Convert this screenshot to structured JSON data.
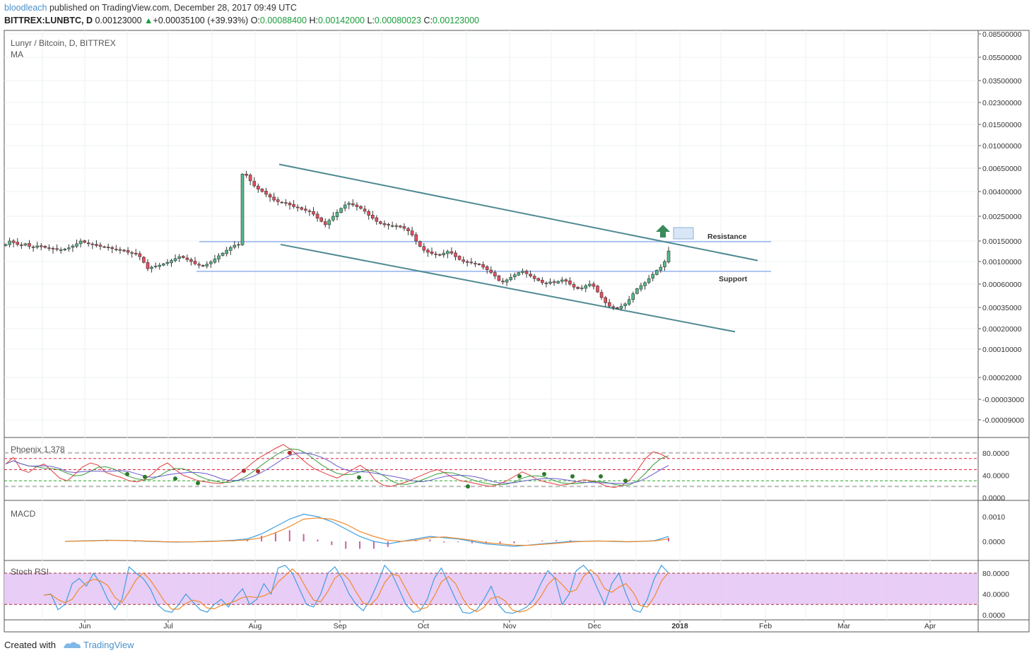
{
  "header": {
    "author": "bloodleach",
    "published_text": "published on TradingView.com, December 28, 2017 09:49 UTC",
    "symbol": "BITTREX:LUNBTC, D",
    "last": "0.00123000",
    "change_arrow": "▲",
    "change": "+0.00035100 (+39.93%)",
    "o_label": "O:",
    "o_value": "0.00088400",
    "h_label": "H:",
    "h_value": "0.00142000",
    "l_label": "L:",
    "l_value": "0.00080023",
    "c_label": "C:",
    "c_value": "0.00123000"
  },
  "footer": {
    "created_with": "Created with",
    "brand": "TradingView"
  },
  "colors": {
    "up_candle": "#53b987",
    "down_candle": "#eb4d5c",
    "channel": "#4e8a92",
    "level": "#9bb8f0",
    "arrow": "#3a8a5a",
    "macd": "#3e9ee0",
    "signal": "#f08a2c",
    "stoch_fill": "#e6c8f5",
    "grid": "#eef0f3"
  },
  "chart_data": [
    {
      "type": "candlestick",
      "title": "Lunyr / Bitcoin, D, BITTREX",
      "indicator": "MA",
      "scale": "log",
      "y_ticks": [
        "0.08500000",
        "0.05500000",
        "0.03500000",
        "0.02300000",
        "0.01500000",
        "0.01000000",
        "0.00650000",
        "0.00400000",
        "0.00250000",
        "0.00150000",
        "0.00100000",
        "0.00060000",
        "0.00035000",
        "0.00020000",
        "0.00010000",
        "0.00002000",
        "-0.00003000",
        "-0.00009000"
      ],
      "x_ticks": [
        "Jun",
        "Jul",
        "Aug",
        "Sep",
        "Oct",
        "Nov",
        "Dec",
        "2018",
        "Feb",
        "Mar",
        "Apr"
      ],
      "annotations": {
        "resistance": "Resistance",
        "support": "Support",
        "resistance_level": 0.00148,
        "support_level": 0.0008
      },
      "daily_close": [
        0.0014,
        0.0015,
        0.00145,
        0.0014,
        0.00138,
        0.00142,
        0.00135,
        0.00133,
        0.00136,
        0.00134,
        0.00132,
        0.0013,
        0.00128,
        0.00127,
        0.00126,
        0.00128,
        0.00131,
        0.00136,
        0.00142,
        0.0015,
        0.00146,
        0.00142,
        0.0014,
        0.00137,
        0.00135,
        0.00133,
        0.00131,
        0.00129,
        0.00127,
        0.00125,
        0.00123,
        0.0012,
        0.00118,
        0.00116,
        0.0011,
        0.00098,
        0.00085,
        0.00088,
        0.0009,
        0.00092,
        0.00095,
        0.00098,
        0.00102,
        0.00106,
        0.0011,
        0.00108,
        0.00104,
        0.001,
        0.00095,
        0.00092,
        0.0009,
        0.00094,
        0.00099,
        0.00105,
        0.00112,
        0.00118,
        0.00125,
        0.00132,
        0.00138,
        0.0014,
        0.00575,
        0.0056,
        0.005,
        0.0045,
        0.0042,
        0.004,
        0.0038,
        0.0036,
        0.0034,
        0.0033,
        0.00325,
        0.0032,
        0.0031,
        0.003,
        0.00295,
        0.00285,
        0.0028,
        0.00275,
        0.0026,
        0.0024,
        0.00225,
        0.0021,
        0.0023,
        0.0025,
        0.0027,
        0.0029,
        0.0031,
        0.0032,
        0.0031,
        0.003,
        0.0029,
        0.00275,
        0.00255,
        0.0024,
        0.00225,
        0.00215,
        0.0021,
        0.00208,
        0.00206,
        0.00204,
        0.002,
        0.00195,
        0.00185,
        0.0017,
        0.0015,
        0.00135,
        0.00125,
        0.0012,
        0.00117,
        0.00115,
        0.00113,
        0.00118,
        0.00122,
        0.00118,
        0.0011,
        0.00104,
        0.001,
        0.00098,
        0.00097,
        0.00095,
        0.00093,
        0.00088,
        0.00083,
        0.00078,
        0.00072,
        0.00065,
        0.00063,
        0.00066,
        0.0007,
        0.00074,
        0.00078,
        0.0008,
        0.00076,
        0.00072,
        0.00068,
        0.00065,
        0.00062,
        0.00061,
        0.00063,
        0.00062,
        0.00064,
        0.00066,
        0.00064,
        0.0006,
        0.00056,
        0.00054,
        0.00055,
        0.00058,
        0.0006,
        0.00057,
        0.0005,
        0.00044,
        0.00039,
        0.00036,
        0.00035,
        0.00034,
        0.00036,
        0.00038,
        0.00042,
        0.00048,
        0.00054,
        0.00058,
        0.00062,
        0.00068,
        0.00075,
        0.00082,
        0.00088,
        0.001,
        0.00123
      ],
      "channel": {
        "upper": [
          [
            0.007,
            "2017-08-10"
          ],
          [
            0.00102,
            "2018-01-31"
          ]
        ],
        "lower": [
          [
            0.0014,
            "2017-08-10"
          ],
          [
            0.00018,
            "2018-01-24"
          ]
        ]
      }
    },
    {
      "type": "line",
      "title": "Phoenix 1.378",
      "y_ticks": [
        "80.0000",
        "40.0000",
        "0.0000"
      ],
      "levels": [
        80,
        70,
        50,
        30,
        20
      ],
      "oscillator": [
        60,
        72,
        50,
        45,
        55,
        60,
        48,
        35,
        30,
        42,
        55,
        62,
        58,
        45,
        40,
        36,
        30,
        28,
        32,
        42,
        55,
        62,
        50,
        40,
        35,
        30,
        28,
        26,
        25,
        30,
        40,
        50,
        62,
        72,
        80,
        88,
        95,
        86,
        74,
        62,
        52,
        46,
        40,
        35,
        42,
        50,
        58,
        48,
        30,
        22,
        20,
        24,
        28,
        34,
        40,
        46,
        50,
        44,
        36,
        30,
        28,
        25,
        22,
        20,
        24,
        30,
        38,
        46,
        40,
        32,
        28,
        25,
        22,
        24,
        28,
        32,
        30,
        26,
        20,
        18,
        22,
        32,
        50,
        70,
        82,
        78,
        70
      ]
    },
    {
      "type": "line",
      "title": "MACD",
      "y_ticks": [
        "0.0010",
        "0.0000"
      ],
      "macd": [
        0,
        2e-05,
        3e-05,
        5e-05,
        4e-05,
        2e-05,
        0,
        -2e-05,
        -3e-05,
        -2e-05,
        0,
        2e-05,
        5e-05,
        0.0001,
        0.0003,
        0.0006,
        0.0009,
        0.0011,
        0.001,
        0.0008,
        0.0005,
        0.0002,
        0,
        -0.0001,
        0,
        0.0001,
        0.0002,
        0.00015,
        0.0001,
        0,
        -0.0001,
        -0.00015,
        -0.0002,
        -0.00015,
        -0.0001,
        -5e-05,
        0,
        0,
        2e-05,
        0,
        -2e-05,
        0,
        3e-05,
        0.0002
      ],
      "signal": [
        0,
        1e-05,
        2e-05,
        4e-05,
        4e-05,
        3e-05,
        1e-05,
        -1e-05,
        -2e-05,
        -2e-05,
        -1e-05,
        1e-05,
        3e-05,
        6e-05,
        0.00015,
        0.00035,
        0.0006,
        0.0009,
        0.00095,
        0.0009,
        0.0007,
        0.0004,
        0.0002,
        5e-05,
        0,
        5e-05,
        0.00015,
        0.00018,
        0.00012,
        5e-05,
        -5e-05,
        -0.0001,
        -0.00015,
        -0.00016,
        -0.00012,
        -8e-05,
        -3e-05,
        0,
        1e-05,
        1e-05,
        -1e-05,
        0,
        2e-05,
        0.0001
      ]
    },
    {
      "type": "line",
      "title": "Stoch RSI",
      "y_ticks": [
        "80.0000",
        "40.0000",
        "0.0000"
      ],
      "band": [
        20,
        80
      ],
      "k": [
        38,
        40,
        10,
        20,
        60,
        70,
        55,
        80,
        60,
        30,
        10,
        30,
        92,
        80,
        70,
        50,
        20,
        8,
        5,
        20,
        40,
        25,
        10,
        5,
        20,
        30,
        15,
        35,
        50,
        20,
        30,
        60,
        40,
        90,
        95,
        80,
        50,
        20,
        15,
        40,
        80,
        92,
        70,
        40,
        20,
        8,
        30,
        60,
        95,
        80,
        50,
        20,
        5,
        8,
        30,
        70,
        90,
        60,
        30,
        5,
        3,
        10,
        30,
        55,
        20,
        5,
        3,
        8,
        15,
        30,
        60,
        85,
        70,
        20,
        40,
        85,
        95,
        80,
        50,
        20,
        60,
        80,
        40,
        10,
        5,
        30,
        70,
        95,
        80
      ]
    }
  ]
}
